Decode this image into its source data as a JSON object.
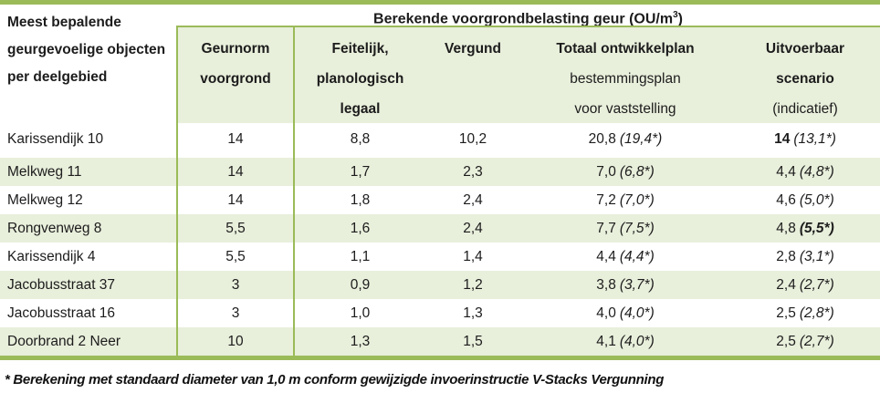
{
  "colors": {
    "accent_green": "#9BBB59",
    "row_light_green": "#E8EFDB"
  },
  "table": {
    "corner_header": "Meest bepalende geurgevoelige objecten per deelgebied",
    "main_header": {
      "prefix": "Berekende voorgrondbelasting geur (OU/m",
      "sup": "3",
      "suffix": ")"
    },
    "col_headers": {
      "geurnorm": {
        "line1": "Geurnorm",
        "line2": "voorgrond"
      },
      "feitelijk": {
        "line1": "Feitelijk,",
        "line2": "planologisch",
        "line3": "legaal"
      },
      "vergund": {
        "line1": "Vergund"
      },
      "totaal": {
        "line1": "Totaal ontwikkelplan",
        "line2": "bestemmingsplan",
        "line3": "voor vaststelling"
      },
      "uitvoerbaar": {
        "line1": "Uitvoerbaar",
        "line2": "scenario",
        "line3": "(indicatief)"
      }
    },
    "rows": [
      {
        "name": "Karissendijk 10",
        "geurnorm": "14",
        "feitelijk": "8,8",
        "vergund": "10,2",
        "totaal": "20,8",
        "totaal_star": "(19,4*)",
        "uitvoerbaar": "14",
        "uitvoerbaar_star": "(13,1*)"
      },
      {
        "name": "Melkweg 11",
        "geurnorm": "14",
        "feitelijk": "1,7",
        "vergund": "2,3",
        "totaal": "7,0",
        "totaal_star": "(6,8*)",
        "uitvoerbaar": "4,4",
        "uitvoerbaar_star": "(4,8*)"
      },
      {
        "name": "Melkweg 12",
        "geurnorm": "14",
        "feitelijk": "1,8",
        "vergund": "2,4",
        "totaal": "7,2",
        "totaal_star": "(7,0*)",
        "uitvoerbaar": "4,6",
        "uitvoerbaar_star": "(5,0*)"
      },
      {
        "name": "Rongvenweg 8",
        "geurnorm": "5,5",
        "feitelijk": "1,6",
        "vergund": "2,4",
        "totaal": "7,7",
        "totaal_star": "(7,5*)",
        "uitvoerbaar": "4,8",
        "uitvoerbaar_star": "(5,5*)"
      },
      {
        "name": "Karissendijk 4",
        "geurnorm": "5,5",
        "feitelijk": "1,1",
        "vergund": "1,4",
        "totaal": "4,4",
        "totaal_star": "(4,4*)",
        "uitvoerbaar": "2,8",
        "uitvoerbaar_star": "(3,1*)"
      },
      {
        "name": "Jacobusstraat 37",
        "geurnorm": "3",
        "feitelijk": "0,9",
        "vergund": "1,2",
        "totaal": "3,8",
        "totaal_star": "(3,7*)",
        "uitvoerbaar": "2,4",
        "uitvoerbaar_star": "(2,7*)"
      },
      {
        "name": "Jacobusstraat 16",
        "geurnorm": "3",
        "feitelijk": "1,0",
        "vergund": "1,3",
        "totaal": "4,0",
        "totaal_star": "(4,0*)",
        "uitvoerbaar": "2,5",
        "uitvoerbaar_star": "(2,8*)"
      },
      {
        "name": "Doorbrand 2 Neer",
        "geurnorm": "10",
        "feitelijk": "1,3",
        "vergund": "1,5",
        "totaal": "4,1",
        "totaal_star": "(4,0*)",
        "uitvoerbaar": "2,5",
        "uitvoerbaar_star": "(2,7*)"
      }
    ],
    "footnote": "* Berekening met standaard diameter van 1,0 m conform gewijzigde invoerinstructie V-Stacks Vergunning"
  }
}
